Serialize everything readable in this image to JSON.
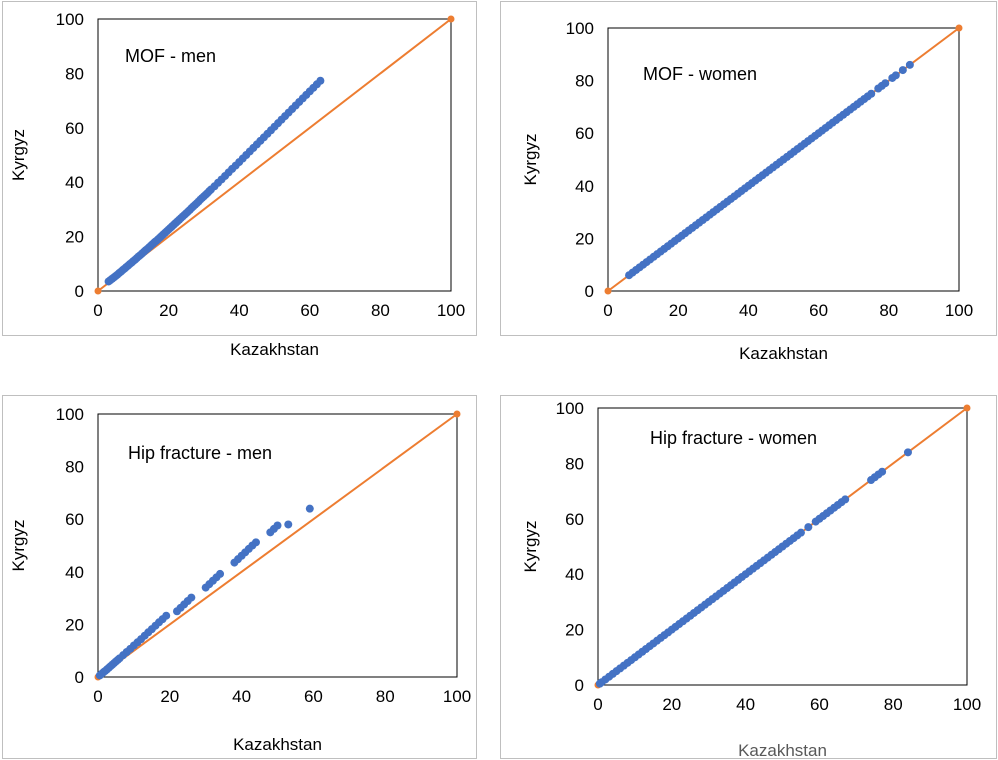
{
  "colors": {
    "points": "#4472C4",
    "reference": "#ED7D31",
    "frame": "#BFBFBF",
    "muted_title": "#595959"
  },
  "chart_data": [
    {
      "type": "scatter",
      "annotation": "MOF - men",
      "xlabel": "Kazakhstan",
      "ylabel": "Kyrgyz",
      "xlim": [
        0,
        100
      ],
      "ylim": [
        0,
        100
      ],
      "xticks": [
        "0",
        "20",
        "40",
        "60",
        "80",
        "100"
      ],
      "yticks": [
        "0",
        "20",
        "40",
        "60",
        "80",
        "100"
      ],
      "grid": false,
      "reference_line": {
        "x": [
          0,
          100
        ],
        "y": [
          0,
          100
        ]
      },
      "points": [
        [
          3,
          3.5
        ],
        [
          3.5,
          4
        ],
        [
          4,
          4.5
        ],
        [
          4.5,
          5
        ],
        [
          5,
          5.5
        ],
        [
          5.5,
          6
        ],
        [
          6,
          6.6
        ],
        [
          6.5,
          7.1
        ],
        [
          7,
          7.7
        ],
        [
          7.5,
          8.2
        ],
        [
          8,
          8.8
        ],
        [
          8.5,
          9.3
        ],
        [
          9,
          9.9
        ],
        [
          9.5,
          10.4
        ],
        [
          10,
          11
        ],
        [
          10.5,
          11.5
        ],
        [
          11,
          12.1
        ],
        [
          11.5,
          12.7
        ],
        [
          12,
          13.2
        ],
        [
          12.5,
          13.8
        ],
        [
          13,
          14.4
        ],
        [
          13.5,
          15
        ],
        [
          14,
          15.5
        ],
        [
          14.5,
          16.1
        ],
        [
          15,
          16.7
        ],
        [
          15.5,
          17.3
        ],
        [
          16,
          17.9
        ],
        [
          16.5,
          18.4
        ],
        [
          17,
          19
        ],
        [
          17.5,
          19.6
        ],
        [
          18,
          20.2
        ],
        [
          18.5,
          20.8
        ],
        [
          19,
          21.4
        ],
        [
          19.5,
          22
        ],
        [
          20,
          22.6
        ],
        [
          20.5,
          23.2
        ],
        [
          21,
          23.8
        ],
        [
          21.5,
          24.4
        ],
        [
          22,
          25
        ],
        [
          22.5,
          25.6
        ],
        [
          23,
          26.2
        ],
        [
          23.5,
          26.8
        ],
        [
          24,
          27.4
        ],
        [
          24.5,
          28
        ],
        [
          25,
          28.6
        ],
        [
          25.5,
          29.2
        ],
        [
          26,
          29.8
        ],
        [
          26.5,
          30.5
        ],
        [
          27,
          31.1
        ],
        [
          27.5,
          31.7
        ],
        [
          28,
          32.3
        ],
        [
          28.5,
          32.9
        ],
        [
          29,
          33.6
        ],
        [
          29.5,
          34.2
        ],
        [
          30,
          34.8
        ],
        [
          30.5,
          35.4
        ],
        [
          31,
          36
        ],
        [
          31.5,
          36.7
        ],
        [
          32,
          37.3
        ],
        [
          33,
          38.5
        ],
        [
          34,
          39.8
        ],
        [
          35,
          41
        ],
        [
          36,
          42.3
        ],
        [
          37,
          43.6
        ],
        [
          38,
          44.9
        ],
        [
          39,
          46.1
        ],
        [
          40,
          47.4
        ],
        [
          41,
          48.7
        ],
        [
          42,
          50
        ],
        [
          43,
          51.3
        ],
        [
          44,
          52.6
        ],
        [
          45,
          53.9
        ],
        [
          46,
          55.2
        ],
        [
          47,
          56.5
        ],
        [
          48,
          57.8
        ],
        [
          49,
          59.1
        ],
        [
          50,
          60.4
        ],
        [
          51,
          61.7
        ],
        [
          52,
          63
        ],
        [
          53,
          64.3
        ],
        [
          54,
          65.6
        ],
        [
          55,
          66.9
        ],
        [
          56,
          68.2
        ],
        [
          57,
          69.5
        ],
        [
          58,
          70.8
        ],
        [
          59,
          72.1
        ],
        [
          60,
          73.4
        ],
        [
          61,
          74.7
        ],
        [
          62,
          76
        ],
        [
          63,
          77.3
        ]
      ]
    },
    {
      "type": "scatter",
      "annotation": "MOF - women",
      "xlabel": "Kazakhstan",
      "ylabel": "Kyrgyz",
      "xlim": [
        0,
        100
      ],
      "ylim": [
        0,
        100
      ],
      "xticks": [
        "0",
        "20",
        "40",
        "60",
        "80",
        "100"
      ],
      "yticks": [
        "0",
        "20",
        "40",
        "60",
        "80",
        "100"
      ],
      "grid": false,
      "reference_line": {
        "x": [
          0,
          100
        ],
        "y": [
          0,
          100
        ]
      },
      "points": [
        [
          6,
          6
        ],
        [
          7,
          7
        ],
        [
          8,
          8
        ],
        [
          9,
          9
        ],
        [
          10,
          10
        ],
        [
          11,
          11
        ],
        [
          12,
          12
        ],
        [
          13,
          13
        ],
        [
          14,
          14
        ],
        [
          15,
          15
        ],
        [
          16,
          16
        ],
        [
          17,
          17
        ],
        [
          18,
          18
        ],
        [
          19,
          19
        ],
        [
          20,
          20
        ],
        [
          21,
          21
        ],
        [
          22,
          22
        ],
        [
          23,
          23
        ],
        [
          24,
          24
        ],
        [
          25,
          25
        ],
        [
          26,
          26
        ],
        [
          27,
          27
        ],
        [
          28,
          28
        ],
        [
          29,
          29
        ],
        [
          30,
          30
        ],
        [
          31,
          31
        ],
        [
          32,
          32
        ],
        [
          33,
          33
        ],
        [
          34,
          34
        ],
        [
          35,
          35
        ],
        [
          36,
          36
        ],
        [
          37,
          37
        ],
        [
          38,
          38
        ],
        [
          39,
          39
        ],
        [
          40,
          40
        ],
        [
          41,
          41
        ],
        [
          42,
          42
        ],
        [
          43,
          43
        ],
        [
          44,
          44
        ],
        [
          45,
          45
        ],
        [
          46,
          46
        ],
        [
          47,
          47
        ],
        [
          48,
          48
        ],
        [
          49,
          49
        ],
        [
          50,
          50
        ],
        [
          51,
          51
        ],
        [
          52,
          52
        ],
        [
          53,
          53
        ],
        [
          54,
          54
        ],
        [
          55,
          55
        ],
        [
          56,
          56
        ],
        [
          57,
          57
        ],
        [
          58,
          58
        ],
        [
          59,
          59
        ],
        [
          60,
          60
        ],
        [
          61,
          61
        ],
        [
          62,
          62
        ],
        [
          63,
          63
        ],
        [
          64,
          64
        ],
        [
          65,
          65
        ],
        [
          66,
          66
        ],
        [
          67,
          67
        ],
        [
          68,
          68
        ],
        [
          69,
          69
        ],
        [
          70,
          70
        ],
        [
          71,
          71
        ],
        [
          72,
          72
        ],
        [
          73,
          73
        ],
        [
          74,
          74
        ],
        [
          75,
          75
        ],
        [
          77,
          77
        ],
        [
          78,
          78
        ],
        [
          79,
          79
        ],
        [
          81,
          81
        ],
        [
          82,
          82
        ],
        [
          84,
          84
        ],
        [
          86,
          86
        ]
      ]
    },
    {
      "type": "scatter",
      "annotation": "Hip fracture - men",
      "xlabel": "Kazakhstan",
      "ylabel": "Kyrgyz",
      "xlim": [
        0,
        100
      ],
      "ylim": [
        0,
        100
      ],
      "xticks": [
        "0",
        "20",
        "40",
        "60",
        "80",
        "100"
      ],
      "yticks": [
        "0",
        "20",
        "40",
        "60",
        "80",
        "100"
      ],
      "grid": false,
      "reference_line": {
        "x": [
          0,
          100
        ],
        "y": [
          0,
          100
        ]
      },
      "points": [
        [
          0.5,
          0.6
        ],
        [
          1,
          1.2
        ],
        [
          1.5,
          1.8
        ],
        [
          2,
          2.3
        ],
        [
          2.5,
          2.9
        ],
        [
          3,
          3.5
        ],
        [
          3.5,
          4.1
        ],
        [
          4,
          4.7
        ],
        [
          4.5,
          5.3
        ],
        [
          5,
          5.9
        ],
        [
          5.5,
          6.5
        ],
        [
          6,
          7.1
        ],
        [
          7,
          8.3
        ],
        [
          8,
          9.5
        ],
        [
          9,
          10.7
        ],
        [
          10,
          12
        ],
        [
          11,
          13.2
        ],
        [
          12,
          14.4
        ],
        [
          13,
          15.7
        ],
        [
          14,
          17
        ],
        [
          15,
          18.2
        ],
        [
          16,
          19.5
        ],
        [
          17,
          20.8
        ],
        [
          18,
          22
        ],
        [
          19,
          23.3
        ],
        [
          22,
          25
        ],
        [
          23,
          26.3
        ],
        [
          24,
          27.6
        ],
        [
          25,
          28.9
        ],
        [
          26,
          30.2
        ],
        [
          30,
          34
        ],
        [
          31,
          35.3
        ],
        [
          32,
          36.6
        ],
        [
          33,
          37.9
        ],
        [
          34,
          39.2
        ],
        [
          38,
          43.5
        ],
        [
          39,
          44.8
        ],
        [
          40,
          46.1
        ],
        [
          41,
          47.4
        ],
        [
          42,
          48.7
        ],
        [
          43,
          50
        ],
        [
          44,
          51.2
        ],
        [
          48,
          55
        ],
        [
          49,
          56.3
        ],
        [
          50,
          57.6
        ],
        [
          53,
          58
        ],
        [
          59,
          64
        ]
      ]
    },
    {
      "type": "scatter",
      "annotation": "Hip fracture - women",
      "xlabel": "Kazakhstan",
      "ylabel": "Kyrgyz",
      "xlim": [
        0,
        100
      ],
      "ylim": [
        0,
        100
      ],
      "xticks": [
        "0",
        "20",
        "40",
        "60",
        "80",
        "100"
      ],
      "yticks": [
        "0",
        "20",
        "40",
        "60",
        "80",
        "100"
      ],
      "grid": false,
      "reference_line": {
        "x": [
          0,
          100
        ],
        "y": [
          0,
          100
        ]
      },
      "points": [
        [
          0.5,
          0.5
        ],
        [
          1,
          1
        ],
        [
          2,
          2
        ],
        [
          3,
          3
        ],
        [
          4,
          4
        ],
        [
          5,
          5
        ],
        [
          6,
          6
        ],
        [
          7,
          7
        ],
        [
          8,
          8
        ],
        [
          9,
          9
        ],
        [
          10,
          10
        ],
        [
          11,
          11
        ],
        [
          12,
          12
        ],
        [
          13,
          13
        ],
        [
          14,
          14
        ],
        [
          15,
          15
        ],
        [
          16,
          16
        ],
        [
          17,
          17
        ],
        [
          18,
          18
        ],
        [
          19,
          19
        ],
        [
          20,
          20
        ],
        [
          21,
          21
        ],
        [
          22,
          22
        ],
        [
          23,
          23
        ],
        [
          24,
          24
        ],
        [
          25,
          25
        ],
        [
          26,
          26
        ],
        [
          27,
          27
        ],
        [
          28,
          28
        ],
        [
          29,
          29
        ],
        [
          30,
          30
        ],
        [
          31,
          31
        ],
        [
          32,
          32
        ],
        [
          33,
          33
        ],
        [
          34,
          34
        ],
        [
          35,
          35
        ],
        [
          36,
          36
        ],
        [
          37,
          37
        ],
        [
          38,
          38
        ],
        [
          39,
          39
        ],
        [
          40,
          40
        ],
        [
          41,
          41
        ],
        [
          42,
          42
        ],
        [
          43,
          43
        ],
        [
          44,
          44
        ],
        [
          45,
          45
        ],
        [
          46,
          46
        ],
        [
          47,
          47
        ],
        [
          48,
          48
        ],
        [
          49,
          49
        ],
        [
          50,
          50
        ],
        [
          51,
          51
        ],
        [
          52,
          52
        ],
        [
          53,
          53
        ],
        [
          54,
          54
        ],
        [
          55,
          55
        ],
        [
          57,
          57
        ],
        [
          59,
          59
        ],
        [
          60,
          60
        ],
        [
          61,
          61
        ],
        [
          62,
          62
        ],
        [
          63,
          63
        ],
        [
          64,
          64
        ],
        [
          65,
          65
        ],
        [
          66,
          66
        ],
        [
          67,
          67
        ],
        [
          74,
          74
        ],
        [
          75,
          75
        ],
        [
          76,
          76
        ],
        [
          77,
          77
        ],
        [
          84,
          84
        ]
      ]
    }
  ]
}
